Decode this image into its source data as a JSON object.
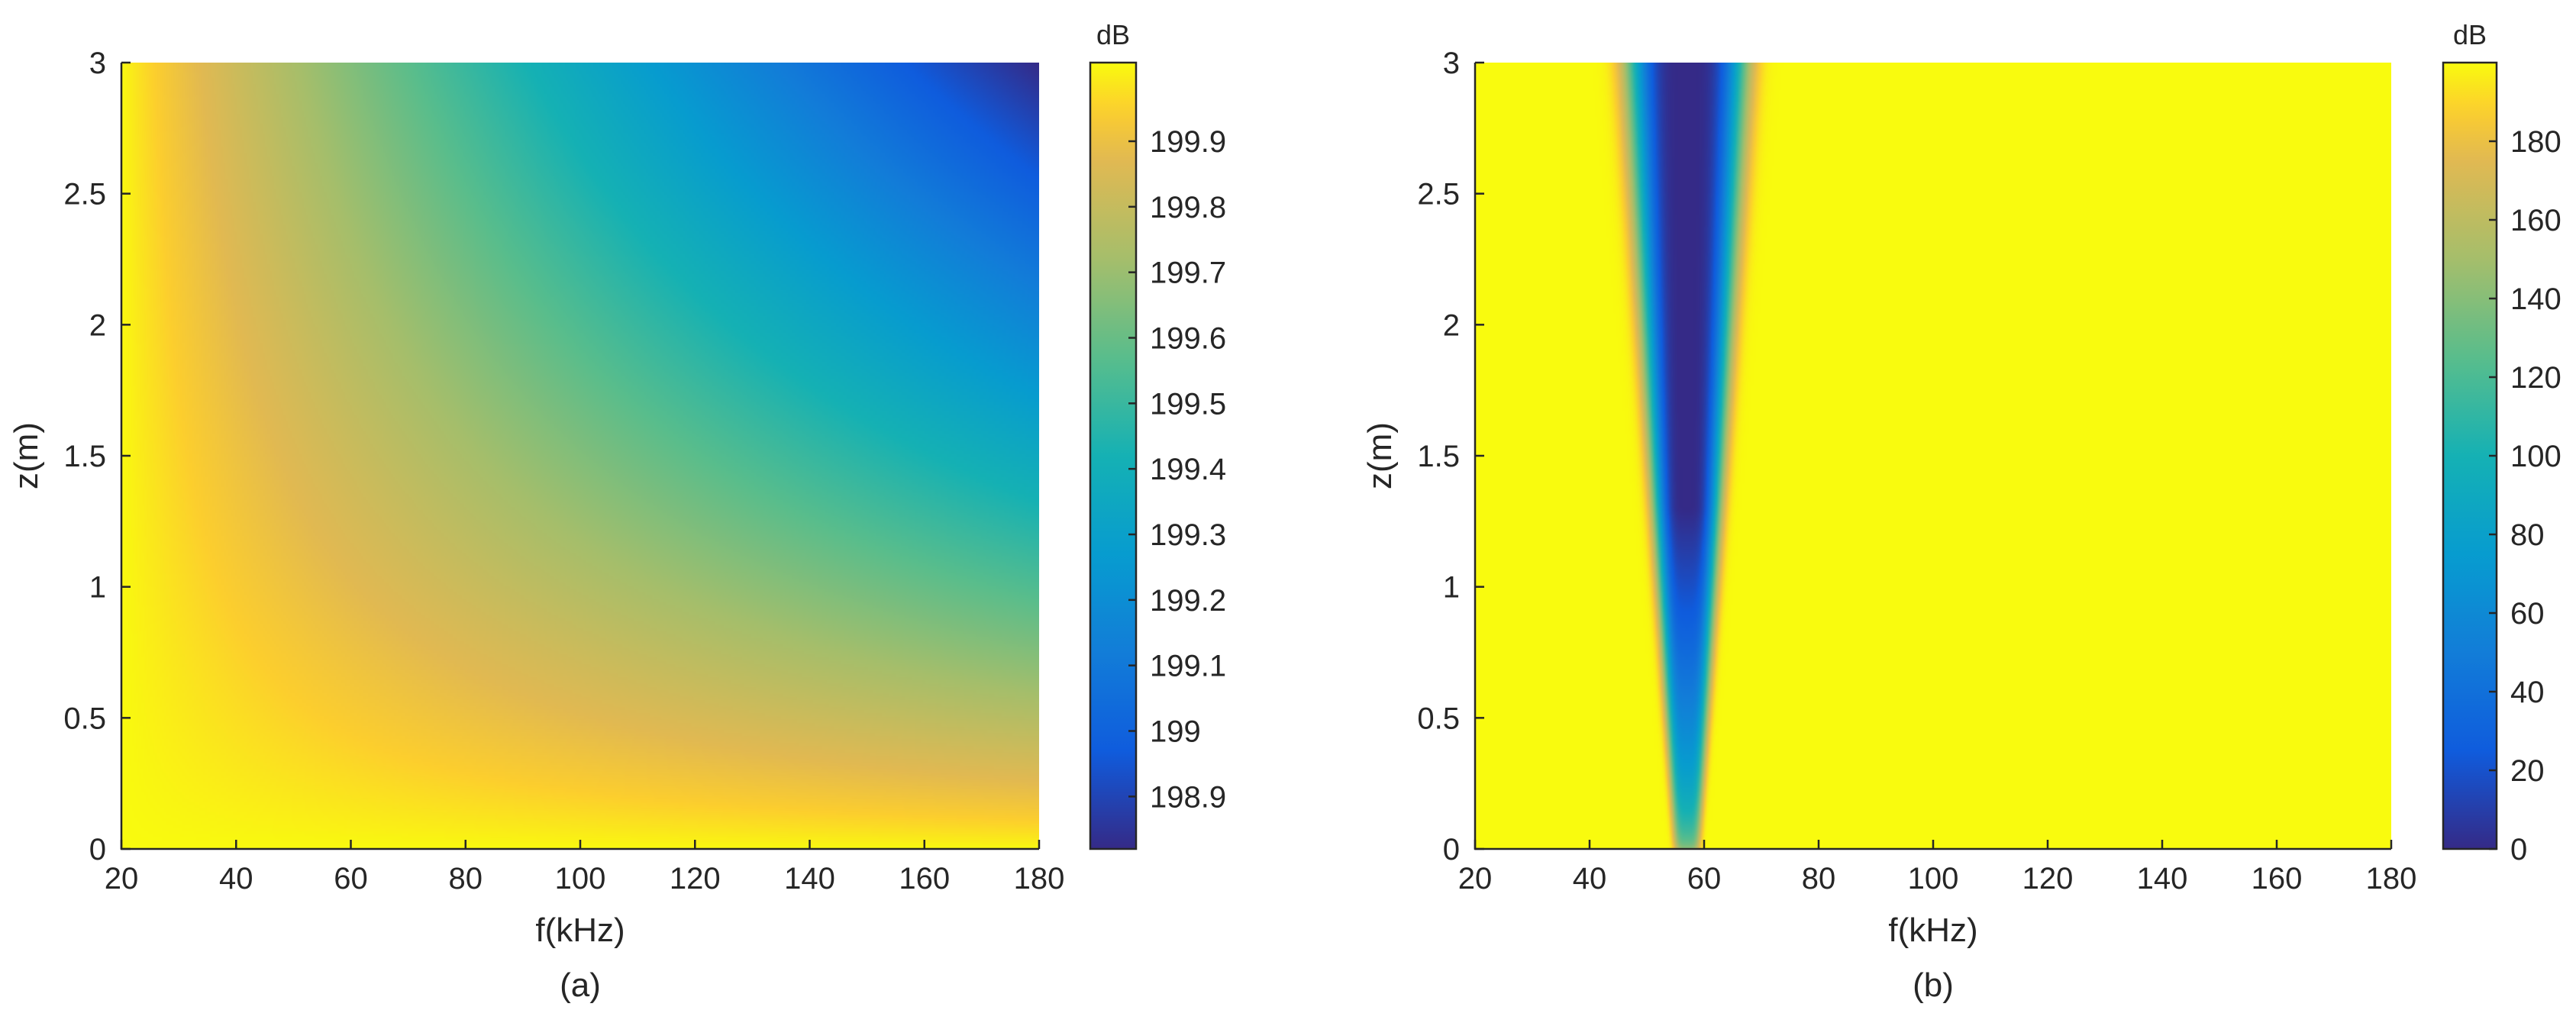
{
  "chart_data": [
    {
      "type": "heatmap",
      "panel_label": "(a)",
      "xlabel": "f(kHz)",
      "ylabel": "z(m)",
      "xlim": [
        20,
        180
      ],
      "ylim": [
        0,
        3
      ],
      "xticks": [
        "20",
        "40",
        "60",
        "80",
        "100",
        "120",
        "140",
        "160",
        "180"
      ],
      "yticks": [
        "0",
        "0.5",
        "1",
        "1.5",
        "2",
        "2.5",
        "3"
      ],
      "colorbar": {
        "title": "dB",
        "range": [
          198.82,
          200.02
        ],
        "ticks": [
          "198.9",
          "199",
          "199.1",
          "199.2",
          "199.3",
          "199.4",
          "199.5",
          "199.6",
          "199.7",
          "199.8",
          "199.9"
        ]
      },
      "grid": false,
      "z_samples": [
        {
          "f": 20,
          "z": 0,
          "dB": 200.0
        },
        {
          "f": 30,
          "z": 2.5,
          "dB": 199.82
        },
        {
          "f": 60,
          "z": 1.5,
          "dB": 199.62
        },
        {
          "f": 100,
          "z": 2.0,
          "dB": 199.38
        },
        {
          "f": 180,
          "z": 1.5,
          "dB": 199.35
        },
        {
          "f": 180,
          "z": 0.5,
          "dB": 199.8
        },
        {
          "f": 180,
          "z": 3.0,
          "dB": 198.85
        }
      ]
    },
    {
      "type": "heatmap",
      "panel_label": "(b)",
      "xlabel": "f(kHz)",
      "ylabel": "z(m)",
      "xlim": [
        20,
        180
      ],
      "ylim": [
        0,
        3
      ],
      "xticks": [
        "20",
        "40",
        "60",
        "80",
        "100",
        "120",
        "140",
        "160",
        "180"
      ],
      "yticks": [
        "0",
        "0.5",
        "1",
        "1.5",
        "2",
        "2.5",
        "3"
      ],
      "colorbar": {
        "title": "dB",
        "range": [
          0,
          200
        ],
        "ticks": [
          "0",
          "20",
          "40",
          "60",
          "80",
          "100",
          "120",
          "140",
          "160",
          "180"
        ]
      },
      "grid": false,
      "notch": {
        "center_f_kHz": 57,
        "min_dB": 0,
        "background_dB": 200
      }
    }
  ],
  "colormap": "parula",
  "colors": {
    "text": "#262626",
    "background": "#ffffff"
  }
}
